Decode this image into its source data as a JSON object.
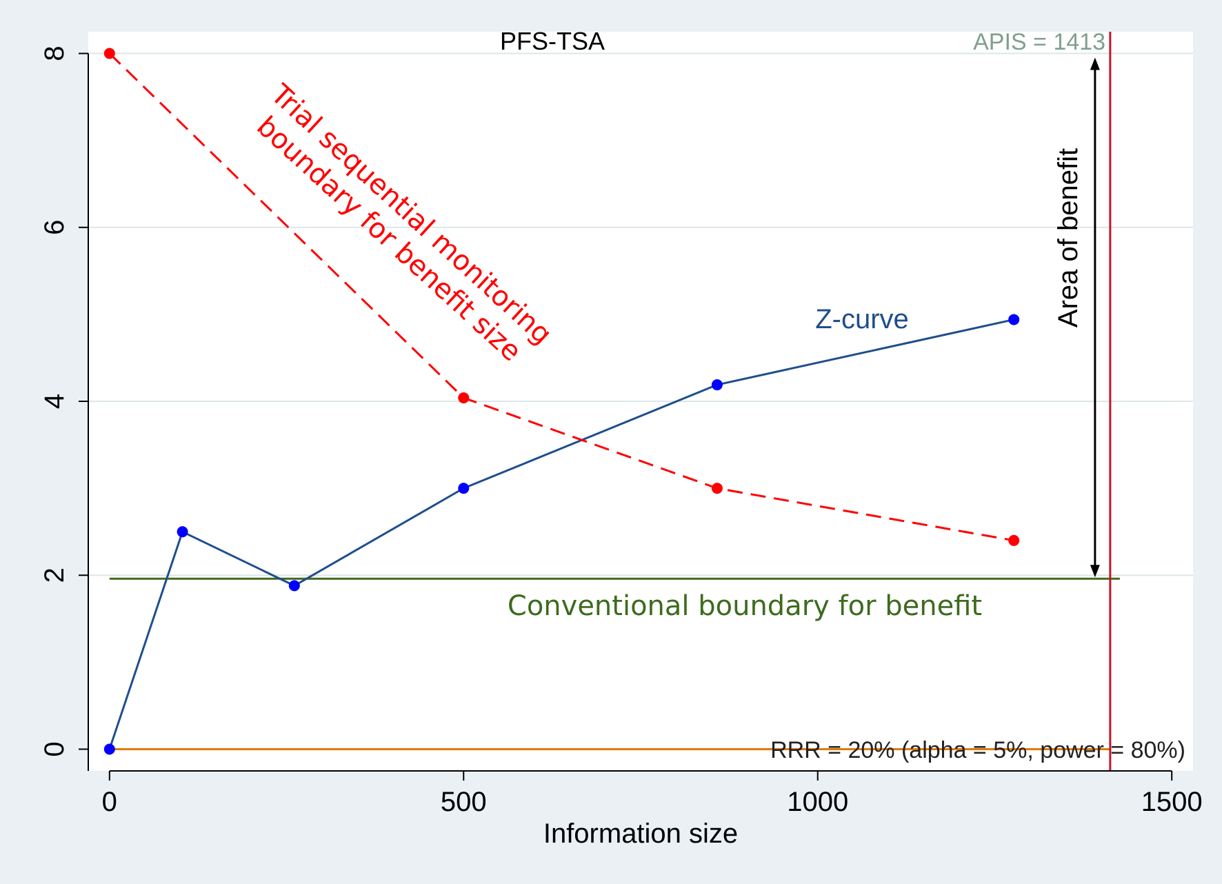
{
  "chart_data": {
    "type": "line",
    "title": "PFS-TSA",
    "xlabel": "Information size",
    "ylabel": "",
    "xlim": [
      -30,
      1530
    ],
    "ylim": [
      -0.25,
      8.25
    ],
    "x_ticks": [
      0,
      500,
      1000,
      1500
    ],
    "y_ticks": [
      0,
      2,
      4,
      6,
      8
    ],
    "grid": true,
    "series": [
      {
        "name": "Z-curve",
        "label": "Z-curve",
        "color": "#1f4e8c",
        "marker_color": "#0000ff",
        "style": "solid",
        "x": [
          0,
          103,
          261,
          500,
          858,
          1277
        ],
        "y": [
          0,
          2.5,
          1.88,
          3.0,
          4.19,
          4.94
        ]
      },
      {
        "name": "Trial sequential monitoring boundary for benefit",
        "label_lines": [
          "Trial sequential monitoring",
          "boundary for benefit size"
        ],
        "color": "#ff0000",
        "marker_color": "#ff0000",
        "style": "dashed",
        "x": [
          0,
          500,
          858,
          1277
        ],
        "y": [
          8.0,
          4.04,
          3.0,
          2.4
        ]
      }
    ],
    "reference_lines": {
      "conventional": {
        "label": "Conventional boundary for benefit",
        "y": 1.96,
        "color": "#3d6b1e"
      },
      "zero": {
        "y": 0,
        "color": "#e07b00"
      },
      "apis": {
        "label": "APIS = 1413",
        "x": 1413,
        "color": "#c4162a",
        "label_color": "#7f9f8f"
      }
    },
    "annotations": {
      "area_of_benefit": "Area of benefit",
      "rrr_note": "RRR = 20% (alpha = 5%, power = 80%)"
    }
  }
}
